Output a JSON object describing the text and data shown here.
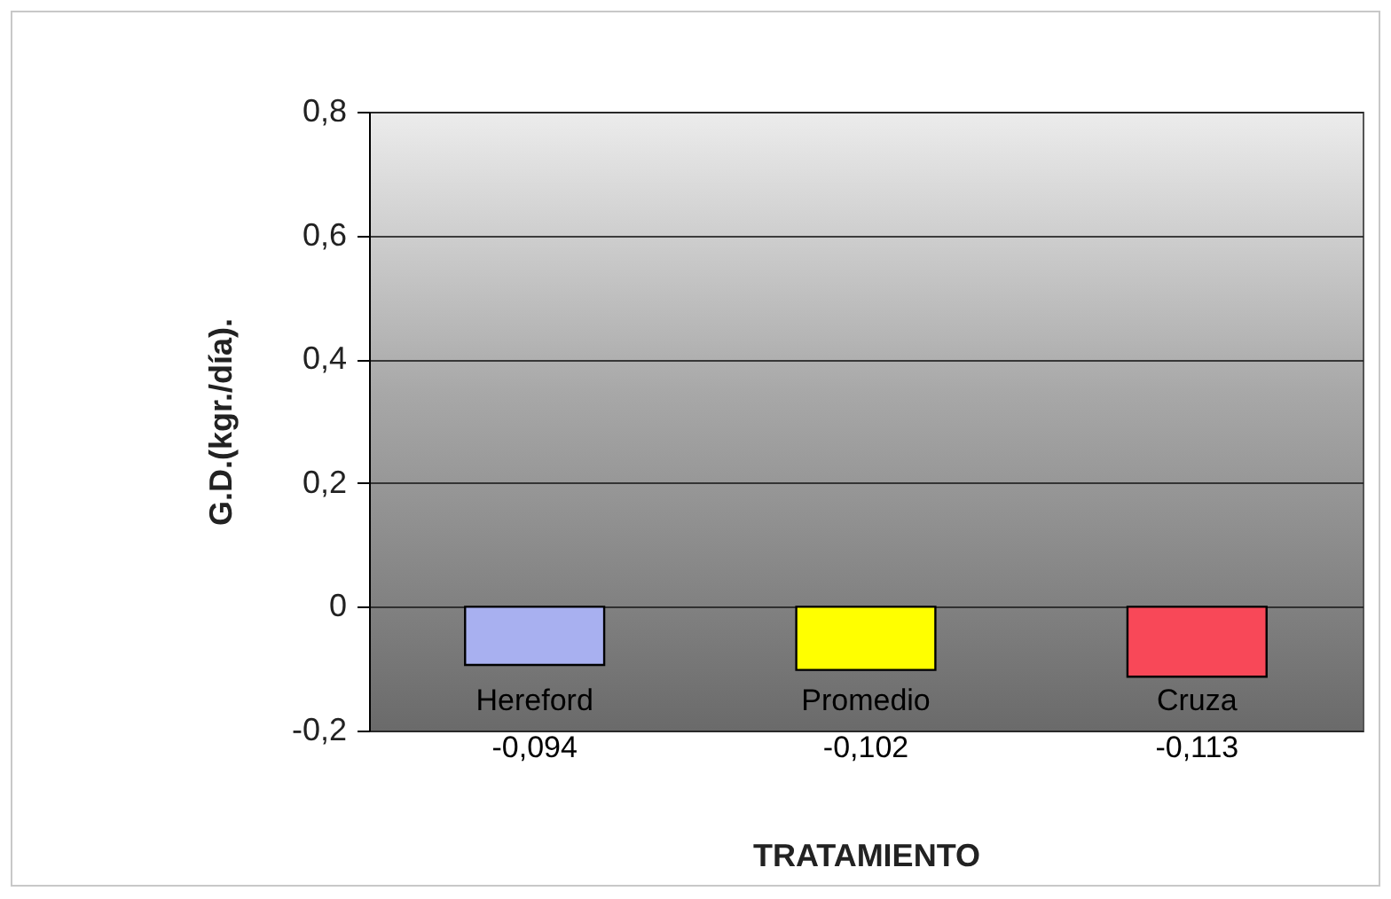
{
  "chart_data": {
    "type": "bar",
    "xlabel": "TRATAMIENTO",
    "ylabel": "G.D.(kgr./día).",
    "categories": [
      "Hereford",
      "Promedio",
      "Cruza"
    ],
    "values": [
      -0.094,
      -0.102,
      -0.113
    ],
    "colors": [
      "#a8b0f0",
      "#ffff00",
      "#f84858"
    ],
    "value_labels": [
      "-0,094",
      "-0,102",
      "-0,113"
    ],
    "ylim": [
      -0.2,
      0.8
    ],
    "yticks": [
      {
        "value": -0.2,
        "label": "-0,2"
      },
      0,
      {
        "value": 0.2,
        "label": "0,2"
      },
      {
        "value": 0.4,
        "label": "0,4"
      },
      {
        "value": 0.6,
        "label": "0,6"
      },
      {
        "value": 0.8,
        "label": "0,8"
      }
    ],
    "grid": "y"
  }
}
